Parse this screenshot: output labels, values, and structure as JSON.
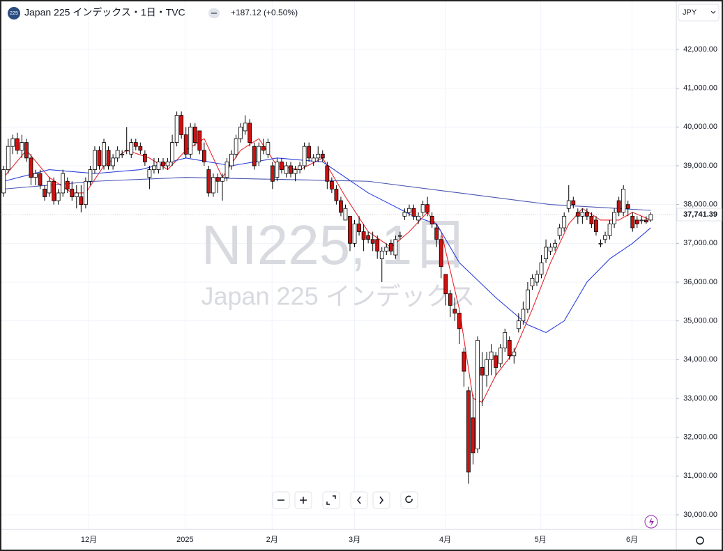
{
  "header": {
    "badge": "225",
    "title": "Japan 225 インデックス・1日・TVC",
    "change": "+187.12 (+0.50%)",
    "currency": "JPY"
  },
  "watermark": {
    "symbol": "NI225, 1日",
    "name": "Japan 225 インデックス"
  },
  "chart_data": {
    "type": "candlestick",
    "up_color": "#ffffff",
    "down_color": "#cc1111",
    "grid": true,
    "ylim": [
      29623,
      43275
    ],
    "yticks": [
      {
        "value": 30000,
        "label": "30,000.00"
      },
      {
        "value": 31000,
        "label": "31,000.00"
      },
      {
        "value": 32000,
        "label": "32,000.00"
      },
      {
        "value": 33000,
        "label": "33,000.00"
      },
      {
        "value": 34000,
        "label": "34,000.00"
      },
      {
        "value": 35000,
        "label": "35,000.00"
      },
      {
        "value": 36000,
        "label": "36,000.00"
      },
      {
        "value": 37000,
        "label": "37,000.00"
      },
      {
        "value": 38000,
        "label": "38,000.00"
      },
      {
        "value": 39000,
        "label": "39,000.00"
      },
      {
        "value": 40000,
        "label": "40,000.00"
      },
      {
        "value": 41000,
        "label": "41,000.00"
      },
      {
        "value": 42000,
        "label": "42,000.00"
      }
    ],
    "xlim": [
      -0.8,
      147.6
    ],
    "xticks": [
      {
        "value": 18.7,
        "label": "12月"
      },
      {
        "value": 39.8,
        "label": "2025"
      },
      {
        "value": 58.9,
        "label": "2月"
      },
      {
        "value": 77,
        "label": "3月"
      },
      {
        "value": 96.9,
        "label": "4月"
      },
      {
        "value": 117.8,
        "label": "5月"
      },
      {
        "value": 137.9,
        "label": "6月"
      }
    ],
    "last_value": 37741.39,
    "last_label": "37,741.39",
    "ohlc": [
      [
        38300,
        39000,
        38200,
        38900
      ],
      [
        38900,
        39700,
        38800,
        39500
      ],
      [
        39500,
        39800,
        39300,
        39700
      ],
      [
        39700,
        39850,
        39300,
        39400
      ],
      [
        39400,
        39800,
        39200,
        39600
      ],
      [
        39600,
        39700,
        39100,
        39200
      ],
      [
        39200,
        39300,
        38500,
        38700
      ],
      [
        38700,
        38900,
        38500,
        38800
      ],
      [
        38800,
        38900,
        38400,
        38500
      ],
      [
        38400,
        38500,
        38100,
        38200
      ],
      [
        38300,
        38700,
        38200,
        38600
      ],
      [
        38600,
        38700,
        38000,
        38100
      ],
      [
        38100,
        38400,
        38000,
        38300
      ],
      [
        38300,
        38900,
        38200,
        38800
      ],
      [
        38600,
        38700,
        38300,
        38400
      ],
      [
        38400,
        38600,
        38100,
        38200
      ],
      [
        38200,
        38500,
        37900,
        38300
      ],
      [
        38200,
        38500,
        37800,
        38000
      ],
      [
        38000,
        38700,
        37900,
        38600
      ],
      [
        38600,
        39000,
        38500,
        38900
      ],
      [
        38900,
        39500,
        38800,
        39400
      ],
      [
        39400,
        39500,
        38900,
        39000
      ],
      [
        39000,
        39700,
        38900,
        39600
      ],
      [
        39400,
        39500,
        38900,
        39000
      ],
      [
        39000,
        39300,
        38900,
        39200
      ],
      [
        39200,
        39500,
        39100,
        39400
      ],
      [
        39300,
        39400,
        39200,
        39300
      ],
      [
        39400,
        40000,
        39300,
        39400
      ],
      [
        39300,
        39700,
        39200,
        39600
      ],
      [
        39600,
        39700,
        39400,
        39500
      ],
      [
        39500,
        39600,
        39300,
        39400
      ],
      [
        39300,
        39400,
        39000,
        39100
      ],
      [
        38700,
        39000,
        38400,
        38900
      ],
      [
        38900,
        39200,
        38800,
        39000
      ],
      [
        38900,
        39200,
        38800,
        39100
      ],
      [
        39100,
        39200,
        38900,
        39000
      ],
      [
        39000,
        39200,
        38900,
        39100
      ],
      [
        39100,
        39800,
        39000,
        39600
      ],
      [
        39600,
        40400,
        39500,
        40300
      ],
      [
        40300,
        40400,
        39700,
        39800
      ],
      [
        39800,
        40000,
        39200,
        39300
      ],
      [
        39300,
        40100,
        39200,
        40000
      ],
      [
        40000,
        40100,
        39500,
        39600
      ],
      [
        39900,
        39900,
        39300,
        39400
      ],
      [
        39400,
        39600,
        39000,
        39100
      ],
      [
        38900,
        39000,
        38200,
        38300
      ],
      [
        38300,
        38800,
        38200,
        38700
      ],
      [
        38700,
        38800,
        38300,
        38600
      ],
      [
        38600,
        38800,
        38100,
        38700
      ],
      [
        38700,
        39200,
        38600,
        39100
      ],
      [
        39000,
        39400,
        38900,
        39300
      ],
      [
        39300,
        39800,
        39200,
        39700
      ],
      [
        39700,
        40100,
        39600,
        40000
      ],
      [
        39900,
        40300,
        39800,
        40100
      ],
      [
        40100,
        40200,
        39500,
        39600
      ],
      [
        39500,
        39600,
        38900,
        39000
      ],
      [
        39100,
        39600,
        39000,
        39500
      ],
      [
        39500,
        39700,
        39300,
        39400
      ],
      [
        39300,
        39700,
        39200,
        39600
      ],
      [
        39000,
        39100,
        38400,
        38600
      ],
      [
        38700,
        39200,
        38600,
        39100
      ],
      [
        39100,
        39200,
        38800,
        38900
      ],
      [
        38800,
        39100,
        38700,
        39000
      ],
      [
        39000,
        39100,
        38700,
        38800
      ],
      [
        38800,
        39000,
        38600,
        38900
      ],
      [
        38900,
        39100,
        38800,
        39000
      ],
      [
        39000,
        39600,
        38900,
        39500
      ],
      [
        39500,
        39600,
        39100,
        39200
      ],
      [
        39100,
        39300,
        39000,
        39200
      ],
      [
        39200,
        39500,
        39100,
        39300
      ],
      [
        39300,
        39400,
        39100,
        39200
      ],
      [
        39000,
        39100,
        38400,
        38600
      ],
      [
        38600,
        38700,
        38300,
        38400
      ],
      [
        38400,
        38500,
        38000,
        38100
      ],
      [
        38100,
        38200,
        37700,
        37800
      ],
      [
        37600,
        38000,
        37600,
        37900
      ],
      [
        37700,
        37700,
        36800,
        37000
      ],
      [
        37000,
        37600,
        36900,
        37500
      ],
      [
        37500,
        37700,
        37200,
        37300
      ],
      [
        37300,
        37500,
        36800,
        37100
      ],
      [
        37200,
        37300,
        37000,
        37100
      ],
      [
        37100,
        37300,
        36800,
        37000
      ],
      [
        37100,
        37200,
        36600,
        36800
      ],
      [
        36600,
        36900,
        36000,
        36800
      ],
      [
        36800,
        37000,
        36700,
        36900
      ],
      [
        37000,
        37100,
        36700,
        36800
      ],
      [
        36700,
        37200,
        36600,
        37100
      ],
      [
        37200,
        37300,
        37100,
        37200
      ],
      [
        37700,
        37900,
        37600,
        37800
      ],
      [
        37800,
        38000,
        37700,
        37900
      ],
      [
        37900,
        38000,
        37600,
        37700
      ],
      [
        37600,
        37800,
        37500,
        37700
      ],
      [
        37800,
        38100,
        37700,
        38000
      ],
      [
        38000,
        38200,
        37700,
        37800
      ],
      [
        37700,
        37800,
        37400,
        37500
      ],
      [
        37400,
        37500,
        36900,
        37100
      ],
      [
        37100,
        37200,
        36100,
        36400
      ],
      [
        36200,
        36200,
        35400,
        35700
      ],
      [
        35700,
        35800,
        35100,
        35400
      ],
      [
        35300,
        35600,
        35000,
        35200
      ],
      [
        35200,
        35200,
        34400,
        34800
      ],
      [
        34200,
        34300,
        33300,
        33700
      ],
      [
        33200,
        33300,
        30800,
        31100
      ],
      [
        32500,
        33100,
        31300,
        31600
      ],
      [
        31700,
        34600,
        31600,
        34500
      ],
      [
        33800,
        34200,
        32800,
        33600
      ],
      [
        33600,
        34200,
        33300,
        34000
      ],
      [
        34000,
        34400,
        33600,
        34200
      ],
      [
        34100,
        34200,
        33600,
        33800
      ],
      [
        33900,
        34400,
        33800,
        34300
      ],
      [
        34300,
        34800,
        34200,
        34700
      ],
      [
        34500,
        34600,
        34000,
        34100
      ],
      [
        34100,
        34300,
        33900,
        34200
      ],
      [
        34800,
        35200,
        34700,
        35000
      ],
      [
        35000,
        35500,
        34900,
        35300
      ],
      [
        35300,
        36000,
        35200,
        35800
      ],
      [
        35900,
        36200,
        35800,
        36100
      ],
      [
        36000,
        36300,
        35900,
        36200
      ],
      [
        36200,
        36700,
        36100,
        36500
      ],
      [
        36600,
        37100,
        36500,
        36900
      ],
      [
        36800,
        37000,
        36700,
        36900
      ],
      [
        36900,
        37100,
        36800,
        37000
      ],
      [
        37200,
        37500,
        37100,
        37400
      ],
      [
        37400,
        37800,
        37300,
        37700
      ],
      [
        37900,
        38500,
        37800,
        38100
      ],
      [
        38100,
        38200,
        37900,
        38000
      ],
      [
        37800,
        37900,
        37500,
        37700
      ],
      [
        37700,
        37900,
        37500,
        37800
      ],
      [
        37800,
        37900,
        37600,
        37700
      ],
      [
        37700,
        37800,
        37400,
        37500
      ],
      [
        37600,
        37700,
        37200,
        37300
      ],
      [
        37000,
        37100,
        36900,
        37000
      ],
      [
        37100,
        37300,
        37000,
        37200
      ],
      [
        37200,
        37600,
        37100,
        37500
      ],
      [
        37500,
        37900,
        37400,
        37800
      ],
      [
        38100,
        38200,
        37700,
        37800
      ],
      [
        37800,
        38500,
        37700,
        38400
      ],
      [
        38000,
        38100,
        37700,
        37900
      ],
      [
        37700,
        37800,
        37300,
        37400
      ],
      [
        37600,
        37700,
        37400,
        37500
      ],
      [
        37600,
        37700,
        37500,
        37600
      ],
      [
        37600,
        37700,
        37500,
        37550
      ],
      [
        37600,
        37800,
        37550,
        37741
      ]
    ],
    "lines": [
      {
        "color": "#e8262a",
        "x": [
          0,
          5,
          10,
          15,
          18,
          22,
          27,
          32,
          36,
          40,
          44,
          48,
          52,
          56,
          60,
          65,
          70,
          75,
          80,
          85,
          89,
          93,
          96,
          100,
          103,
          105,
          108,
          112,
          116,
          120,
          124,
          127,
          131,
          135,
          138,
          142
        ],
        "values": [
          38700,
          39400,
          38700,
          38300,
          38300,
          39000,
          39400,
          39200,
          38900,
          39400,
          39700,
          38700,
          39400,
          39700,
          39000,
          38900,
          39200,
          38200,
          37300,
          36900,
          37300,
          37800,
          37300,
          35300,
          33000,
          32900,
          33600,
          34200,
          35300,
          36500,
          37500,
          37900,
          37600,
          37600,
          37800,
          37600
        ]
      },
      {
        "color": "#2a3fdc",
        "x": [
          0,
          10,
          20,
          30,
          40,
          50,
          60,
          70,
          80,
          90,
          95,
          100,
          108,
          115,
          119,
          123,
          128,
          133,
          138,
          142
        ],
        "values": [
          38600,
          38900,
          38800,
          38900,
          39200,
          39000,
          39200,
          39100,
          38300,
          37700,
          37500,
          36500,
          35600,
          34900,
          34700,
          35000,
          36000,
          36600,
          37000,
          37400
        ]
      },
      {
        "color": "#4a55b0",
        "x": [
          0,
          20,
          40,
          60,
          80,
          100,
          120,
          142
        ],
        "values": [
          38400,
          38600,
          38700,
          38650,
          38600,
          38300,
          38000,
          37850
        ]
      }
    ]
  }
}
